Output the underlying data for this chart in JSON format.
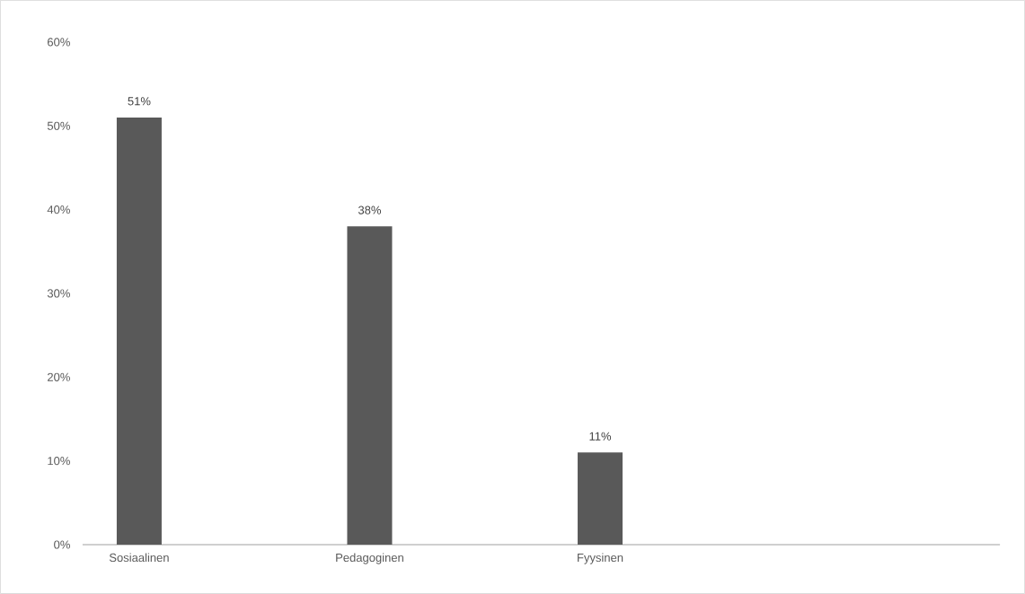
{
  "chart_data": {
    "type": "bar",
    "categories": [
      "Sosiaalinen",
      "Pedagoginen",
      "Fyysinen"
    ],
    "values": [
      51,
      38,
      11
    ],
    "value_labels": [
      "51%",
      "38%",
      "11%"
    ],
    "color": "#595959",
    "ylim": [
      0,
      60
    ],
    "yticks": [
      {
        "value": 0,
        "label": "0%"
      },
      {
        "value": 10,
        "label": "10%"
      },
      {
        "value": 20,
        "label": "20%"
      },
      {
        "value": 30,
        "label": "30%"
      },
      {
        "value": 40,
        "label": "40%"
      },
      {
        "value": 50,
        "label": "50%"
      },
      {
        "value": 60,
        "label": "60%"
      }
    ],
    "grid": false
  }
}
